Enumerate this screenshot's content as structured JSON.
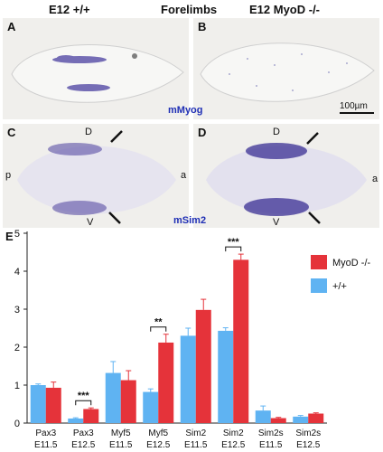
{
  "header": {
    "left": "E12 +/+",
    "center": "Forelimbs",
    "right": "E12 MyoD -/-"
  },
  "panels": {
    "A": {
      "label": "A"
    },
    "B": {
      "label": "B"
    },
    "C": {
      "label": "C",
      "d": "D",
      "v": "V",
      "p": "p",
      "a": "a"
    },
    "D": {
      "label": "D",
      "d": "D",
      "v": "V",
      "a": "a"
    },
    "E": {
      "label": "E"
    }
  },
  "markers": {
    "top": "mMyog",
    "bottom": "mSim2"
  },
  "scale_bar": {
    "label": "100µm"
  },
  "chart_data": {
    "type": "bar",
    "categories": [
      [
        "Pax3",
        "E11.5"
      ],
      [
        "Pax3",
        "E12.5"
      ],
      [
        "Myf5",
        "E11.5"
      ],
      [
        "Myf5",
        "E12.5"
      ],
      [
        "Sim2",
        "E11.5"
      ],
      [
        "Sim2",
        "E12.5"
      ],
      [
        "Sim2s",
        "E11.5"
      ],
      [
        "Sim2s",
        "E12.5"
      ]
    ],
    "series": [
      {
        "name": "+/+",
        "color": "#5fb3f2",
        "values": [
          1.0,
          0.12,
          1.32,
          0.82,
          2.3,
          2.43,
          0.33,
          0.17
        ],
        "errors": [
          0.03,
          0.02,
          0.3,
          0.08,
          0.2,
          0.08,
          0.12,
          0.03
        ]
      },
      {
        "name": "MyoD -/-",
        "color": "#e5333a",
        "values": [
          0.93,
          0.37,
          1.13,
          2.12,
          2.98,
          4.3,
          0.13,
          0.25
        ],
        "errors": [
          0.15,
          0.03,
          0.25,
          0.22,
          0.28,
          0.15,
          0.02,
          0.02
        ]
      }
    ],
    "significance": [
      {
        "category_index": 1,
        "label": "***"
      },
      {
        "category_index": 3,
        "label": "**"
      },
      {
        "category_index": 5,
        "label": "***"
      }
    ],
    "ylim": [
      0,
      5
    ],
    "yticks": [
      0,
      1,
      2,
      3,
      4,
      5
    ],
    "legend_position": "top-right"
  }
}
